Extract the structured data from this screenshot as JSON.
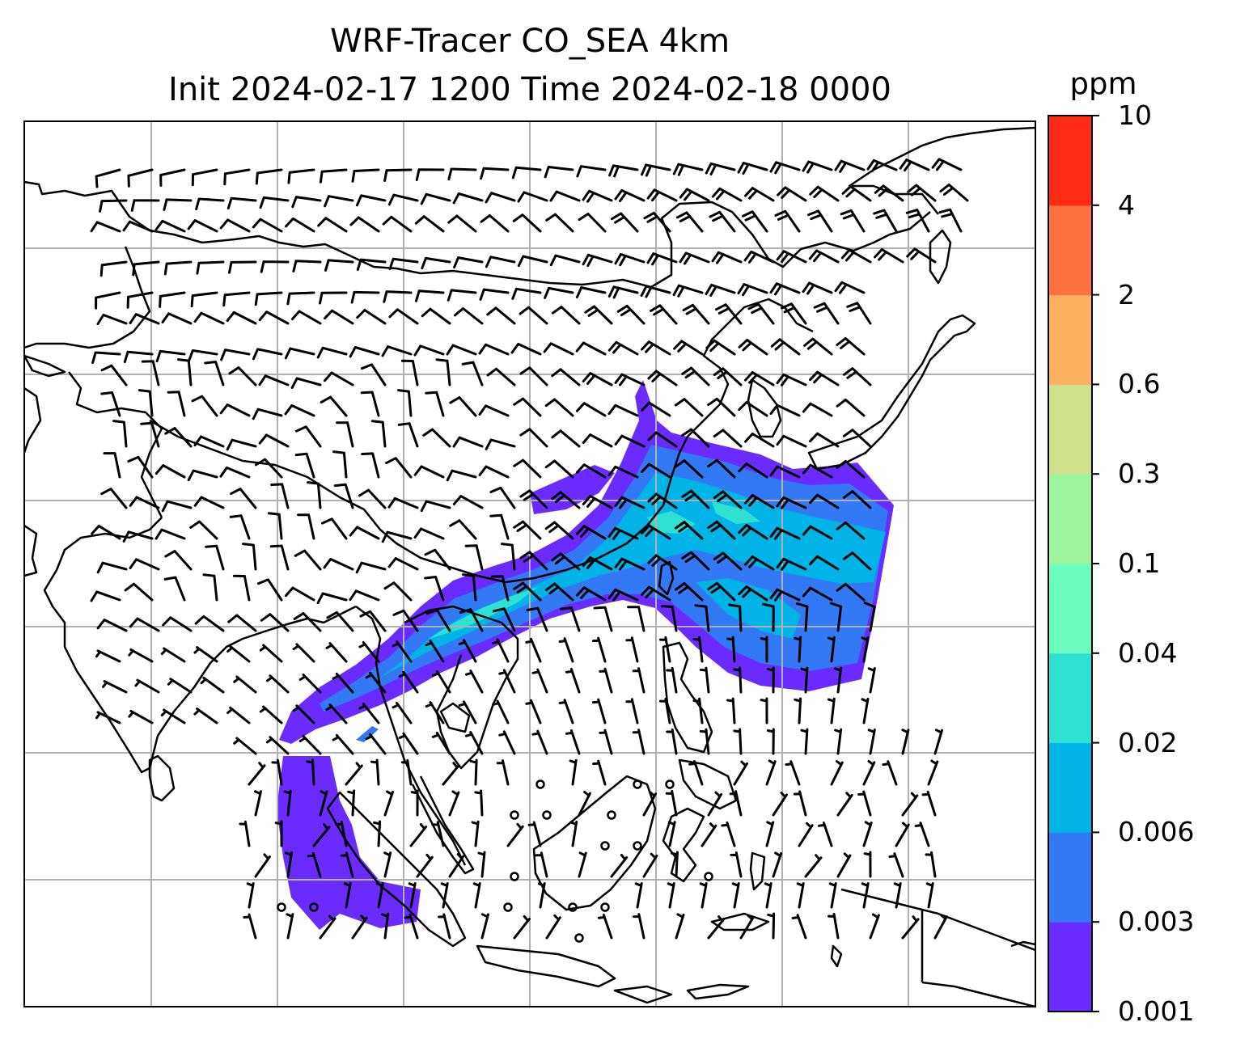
{
  "figure": {
    "title_line1": "WRF-Tracer CO_SEA 4km",
    "title_line2": "Init 2024-02-17 1200 Time 2024-02-18 0000"
  },
  "colorbar": {
    "unit": "ppm",
    "levels": [
      "0.001",
      "0.003",
      "0.006",
      "0.02",
      "0.04",
      "0.1",
      "0.3",
      "0.6",
      "2",
      "4",
      "10"
    ],
    "colors": [
      "#6a2bff",
      "#3378f5",
      "#00b4e8",
      "#2ee0d2",
      "#6bfdbd",
      "#9cf59c",
      "#cfe08a",
      "#fdb05f",
      "#ff7141",
      "#ff2b17"
    ]
  },
  "map": {
    "gridlines": "on",
    "coastline_color": "#000000",
    "grid_color": "#b0b0b0",
    "wind_barb_color": "#000000"
  }
}
